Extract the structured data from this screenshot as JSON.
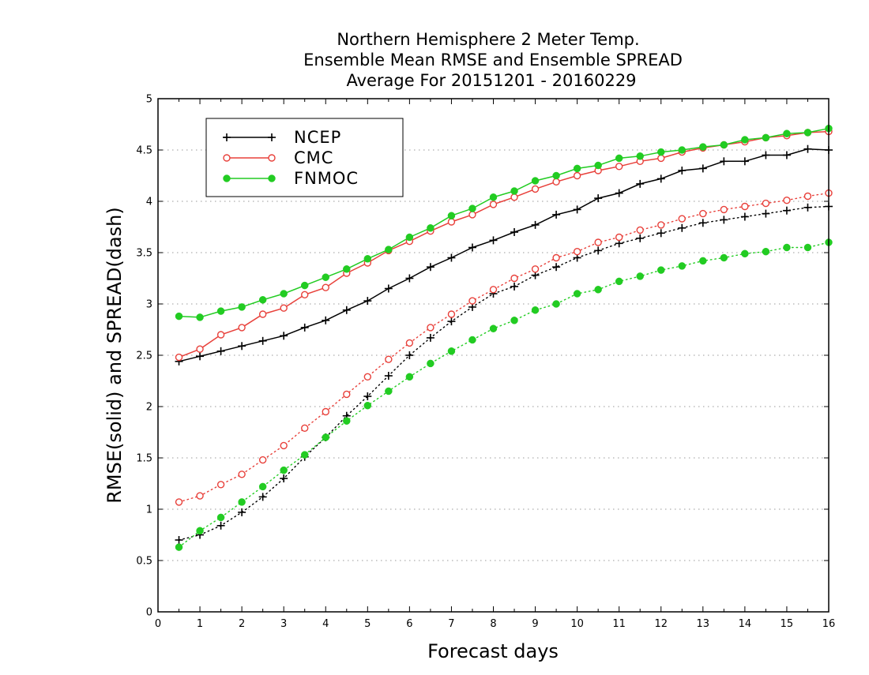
{
  "chart_data": {
    "type": "line",
    "title": [
      "Northern Hemisphere 2 Meter Temp.",
      "Ensemble Mean RMSE and Ensemble SPREAD",
      "Average For 20151201 - 20160229"
    ],
    "xlabel": "Forecast days",
    "ylabel": "RMSE(solid) and SPREAD(dash)",
    "xlim": [
      0,
      16
    ],
    "ylim": [
      0,
      5
    ],
    "x_ticks": [
      "0",
      "1",
      "2",
      "3",
      "4",
      "5",
      "6",
      "7",
      "8",
      "9",
      "10",
      "11",
      "12",
      "13",
      "14",
      "15",
      "16"
    ],
    "y_ticks": [
      "0",
      "0.5",
      "1",
      "1.5",
      "2",
      "2.5",
      "3",
      "3.5",
      "4",
      "4.5",
      "5"
    ],
    "grid": "horizontal-dotted",
    "legend_position": "top-left",
    "x": [
      0.5,
      1,
      1.5,
      2,
      2.5,
      3,
      3.5,
      4,
      4.5,
      5,
      5.5,
      6,
      6.5,
      7,
      7.5,
      8,
      8.5,
      9,
      9.5,
      10,
      10.5,
      11,
      11.5,
      12,
      12.5,
      13,
      13.5,
      14,
      14.5,
      15,
      15.5,
      16
    ],
    "series": [
      {
        "name": "NCEP",
        "color": "#000000",
        "marker": "plus",
        "rmse": [
          2.44,
          2.49,
          2.54,
          2.59,
          2.64,
          2.69,
          2.77,
          2.84,
          2.94,
          3.03,
          3.15,
          3.25,
          3.36,
          3.45,
          3.55,
          3.62,
          3.7,
          3.77,
          3.87,
          3.92,
          4.03,
          4.08,
          4.17,
          4.22,
          4.3,
          4.32,
          4.39,
          4.39,
          4.45,
          4.45,
          4.51,
          4.5
        ],
        "spread": [
          0.7,
          0.75,
          0.84,
          0.97,
          1.12,
          1.3,
          1.51,
          1.7,
          1.91,
          2.1,
          2.3,
          2.5,
          2.67,
          2.83,
          2.97,
          3.1,
          3.17,
          3.28,
          3.36,
          3.45,
          3.52,
          3.59,
          3.64,
          3.69,
          3.74,
          3.79,
          3.82,
          3.85,
          3.88,
          3.91,
          3.94,
          3.95
        ]
      },
      {
        "name": "CMC",
        "color": "#e8403a",
        "marker": "open-circle",
        "rmse": [
          2.48,
          2.56,
          2.7,
          2.77,
          2.9,
          2.96,
          3.09,
          3.16,
          3.3,
          3.4,
          3.52,
          3.61,
          3.71,
          3.8,
          3.87,
          3.97,
          4.04,
          4.12,
          4.19,
          4.25,
          4.3,
          4.34,
          4.39,
          4.42,
          4.48,
          4.52,
          4.55,
          4.58,
          4.62,
          4.64,
          4.67,
          4.68
        ],
        "spread": [
          1.07,
          1.13,
          1.24,
          1.34,
          1.48,
          1.62,
          1.79,
          1.95,
          2.12,
          2.29,
          2.46,
          2.62,
          2.77,
          2.9,
          3.03,
          3.14,
          3.25,
          3.34,
          3.45,
          3.51,
          3.6,
          3.65,
          3.72,
          3.77,
          3.83,
          3.88,
          3.92,
          3.95,
          3.98,
          4.01,
          4.05,
          4.08
        ]
      },
      {
        "name": "FNMOC",
        "color": "#22cc22",
        "marker": "filled-circle",
        "rmse": [
          2.88,
          2.87,
          2.93,
          2.97,
          3.04,
          3.1,
          3.18,
          3.26,
          3.34,
          3.44,
          3.53,
          3.65,
          3.74,
          3.86,
          3.93,
          4.04,
          4.1,
          4.2,
          4.25,
          4.32,
          4.35,
          4.42,
          4.44,
          4.48,
          4.5,
          4.53,
          4.55,
          4.6,
          4.62,
          4.66,
          4.67,
          4.71
        ],
        "spread": [
          0.63,
          0.79,
          0.92,
          1.07,
          1.22,
          1.38,
          1.53,
          1.7,
          1.86,
          2.01,
          2.15,
          2.29,
          2.42,
          2.54,
          2.65,
          2.76,
          2.84,
          2.94,
          3.0,
          3.1,
          3.14,
          3.22,
          3.27,
          3.33,
          3.37,
          3.42,
          3.45,
          3.49,
          3.51,
          3.55,
          3.55,
          3.6
        ]
      }
    ]
  }
}
